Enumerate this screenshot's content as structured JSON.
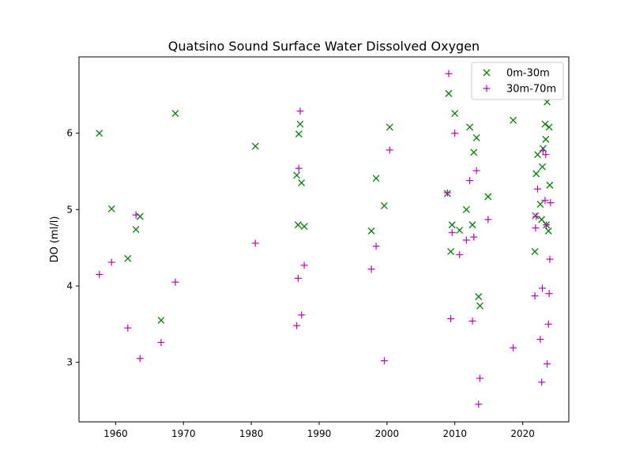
{
  "chart_data": {
    "type": "scatter",
    "title": "Quatsino Sound Surface Water Dissolved Oxygen",
    "xlabel": "",
    "ylabel": "DO (ml/l)",
    "xlim": [
      1954.6,
      2026.8
    ],
    "ylim": [
      2.22,
      7.0
    ],
    "xticks": [
      1960,
      1970,
      1980,
      1990,
      2000,
      2010,
      2020
    ],
    "yticks": [
      3,
      4,
      5,
      6
    ],
    "grid": false,
    "legend_position": "top-right",
    "series": [
      {
        "name": "0m-30m",
        "marker": "x",
        "color": "#008000",
        "points": [
          [
            1957.6,
            6.0
          ],
          [
            1959.4,
            5.01
          ],
          [
            1961.8,
            4.36
          ],
          [
            1963.0,
            4.74
          ],
          [
            1963.6,
            4.91
          ],
          [
            1966.7,
            3.55
          ],
          [
            1968.8,
            6.26
          ],
          [
            1980.6,
            5.83
          ],
          [
            1986.7,
            5.45
          ],
          [
            1986.9,
            4.8
          ],
          [
            1987.0,
            5.99
          ],
          [
            1987.2,
            6.12
          ],
          [
            1987.4,
            5.35
          ],
          [
            1987.8,
            4.78
          ],
          [
            1997.7,
            4.72
          ],
          [
            1998.4,
            5.41
          ],
          [
            1999.6,
            5.05
          ],
          [
            2000.4,
            6.08
          ],
          [
            2008.9,
            5.21
          ],
          [
            2009.1,
            6.52
          ],
          [
            2009.4,
            4.45
          ],
          [
            2009.6,
            4.8
          ],
          [
            2010.0,
            6.26
          ],
          [
            2010.7,
            4.73
          ],
          [
            2011.7,
            5.0
          ],
          [
            2012.2,
            6.08
          ],
          [
            2012.6,
            4.8
          ],
          [
            2012.8,
            5.75
          ],
          [
            2013.2,
            5.94
          ],
          [
            2013.5,
            3.86
          ],
          [
            2013.7,
            3.74
          ],
          [
            2014.9,
            5.17
          ],
          [
            2018.6,
            6.17
          ],
          [
            2021.8,
            4.45
          ],
          [
            2021.9,
            4.92
          ],
          [
            2022.0,
            5.47
          ],
          [
            2022.2,
            5.72
          ],
          [
            2022.6,
            5.07
          ],
          [
            2022.8,
            4.87
          ],
          [
            2022.9,
            5.56
          ],
          [
            2023.0,
            5.8
          ],
          [
            2023.3,
            6.12
          ],
          [
            2023.4,
            5.92
          ],
          [
            2023.5,
            4.8
          ],
          [
            2023.6,
            6.41
          ],
          [
            2023.8,
            4.72
          ],
          [
            2023.9,
            6.08
          ],
          [
            2024.0,
            5.32
          ]
        ]
      },
      {
        "name": "30m-70m",
        "marker": "+",
        "color": "#bf00bf",
        "points": [
          [
            1957.6,
            4.15
          ],
          [
            1959.4,
            4.31
          ],
          [
            1961.8,
            3.45
          ],
          [
            1963.0,
            4.93
          ],
          [
            1963.6,
            3.05
          ],
          [
            1966.7,
            3.26
          ],
          [
            1968.8,
            4.05
          ],
          [
            1980.6,
            4.56
          ],
          [
            1986.7,
            3.48
          ],
          [
            1986.9,
            4.1
          ],
          [
            1987.0,
            5.54
          ],
          [
            1987.2,
            6.29
          ],
          [
            1987.4,
            3.62
          ],
          [
            1987.8,
            4.27
          ],
          [
            1997.7,
            4.22
          ],
          [
            1998.4,
            4.52
          ],
          [
            1999.6,
            3.02
          ],
          [
            2000.4,
            5.78
          ],
          [
            2008.9,
            5.22
          ],
          [
            2009.1,
            6.78
          ],
          [
            2009.4,
            3.57
          ],
          [
            2009.6,
            4.7
          ],
          [
            2010.0,
            6.0
          ],
          [
            2010.7,
            4.41
          ],
          [
            2011.7,
            4.6
          ],
          [
            2012.2,
            5.38
          ],
          [
            2012.6,
            3.54
          ],
          [
            2012.8,
            4.64
          ],
          [
            2013.2,
            5.51
          ],
          [
            2013.5,
            2.45
          ],
          [
            2013.7,
            2.79
          ],
          [
            2014.9,
            4.87
          ],
          [
            2018.6,
            3.19
          ],
          [
            2021.8,
            3.87
          ],
          [
            2021.9,
            4.76
          ],
          [
            2022.0,
            4.91
          ],
          [
            2022.2,
            5.27
          ],
          [
            2022.6,
            3.3
          ],
          [
            2022.8,
            2.74
          ],
          [
            2022.9,
            3.97
          ],
          [
            2023.0,
            5.77
          ],
          [
            2023.3,
            5.12
          ],
          [
            2023.4,
            5.72
          ],
          [
            2023.5,
            4.8
          ],
          [
            2023.6,
            2.98
          ],
          [
            2023.8,
            3.5
          ],
          [
            2023.9,
            3.9
          ],
          [
            2024.0,
            4.35
          ],
          [
            2024.1,
            5.09
          ]
        ]
      }
    ]
  }
}
